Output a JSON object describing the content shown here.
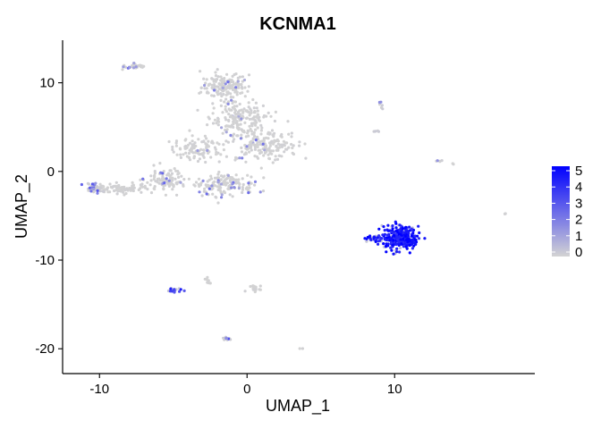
{
  "chart_data": {
    "type": "scatter",
    "title": "KCNMA1",
    "xlabel": "UMAP_1",
    "ylabel": "UMAP_2",
    "xlim": [
      -12.5,
      19.5
    ],
    "ylim": [
      -22.8,
      14.8
    ],
    "x_ticks": [
      -10,
      0,
      10
    ],
    "y_ticks": [
      10,
      0,
      -10,
      -20
    ],
    "grid": false,
    "legend_position": "right",
    "color_scale": {
      "min": 0,
      "max": 5,
      "low_color": "#d3d3d3",
      "high_color": "#0000ff",
      "ticks": [
        0,
        1,
        2,
        3,
        4,
        5
      ]
    },
    "clusters": [
      {
        "center": [
          -1.5,
          9.5
        ],
        "spread": [
          1.6,
          1.6
        ],
        "n": 160,
        "expr_mean": 0.3,
        "expr_high_frac": 0.06
      },
      {
        "center": [
          -0.5,
          6.0
        ],
        "spread": [
          2.0,
          1.8
        ],
        "n": 170,
        "expr_mean": 0.3,
        "expr_high_frac": 0.05
      },
      {
        "center": [
          1.0,
          3.0
        ],
        "spread": [
          2.5,
          1.8
        ],
        "n": 180,
        "expr_mean": 0.3,
        "expr_high_frac": 0.05
      },
      {
        "center": [
          -3.5,
          2.5
        ],
        "spread": [
          1.6,
          1.3
        ],
        "n": 100,
        "expr_mean": 0.3,
        "expr_high_frac": 0.05
      },
      {
        "center": [
          -1.5,
          -1.5
        ],
        "spread": [
          2.0,
          1.3
        ],
        "n": 150,
        "expr_mean": 0.3,
        "expr_high_frac": 0.08
      },
      {
        "center": [
          -5.5,
          -1.0
        ],
        "spread": [
          1.4,
          1.4
        ],
        "n": 90,
        "expr_mean": 0.3,
        "expr_high_frac": 0.05
      },
      {
        "center": [
          -8.5,
          -2.0
        ],
        "spread": [
          1.7,
          0.5
        ],
        "n": 80,
        "expr_mean": 0.3,
        "expr_high_frac": 0.04
      },
      {
        "center": [
          -10.3,
          -1.8
        ],
        "spread": [
          0.6,
          0.5
        ],
        "n": 50,
        "expr_mean": 0.8,
        "expr_high_frac": 0.25
      },
      {
        "center": [
          -7.8,
          11.8
        ],
        "spread": [
          0.5,
          0.4
        ],
        "n": 25,
        "expr_mean": 0.3,
        "expr_high_frac": 0.1
      },
      {
        "center": [
          -7.2,
          11.9
        ],
        "spread": [
          0.3,
          0.2
        ],
        "n": 8,
        "expr_mean": 0.2,
        "expr_high_frac": 0.0
      },
      {
        "center": [
          10.4,
          -7.5
        ],
        "spread": [
          1.2,
          1.3
        ],
        "n": 340,
        "expr_mean": 3.2,
        "expr_high_frac": 0.85
      },
      {
        "center": [
          8.6,
          -7.6
        ],
        "spread": [
          0.5,
          0.35
        ],
        "n": 30,
        "expr_mean": 2.8,
        "expr_high_frac": 0.8
      },
      {
        "center": [
          -5.0,
          -13.4
        ],
        "spread": [
          0.6,
          0.2
        ],
        "n": 18,
        "expr_mean": 2.0,
        "expr_high_frac": 0.5
      },
      {
        "center": [
          0.5,
          -13.2
        ],
        "spread": [
          0.6,
          0.3
        ],
        "n": 16,
        "expr_mean": 0.3,
        "expr_high_frac": 0.0
      },
      {
        "center": [
          -2.6,
          -12.3
        ],
        "spread": [
          0.3,
          0.3
        ],
        "n": 8,
        "expr_mean": 0.2,
        "expr_high_frac": 0.0
      },
      {
        "center": [
          -1.4,
          -18.9
        ],
        "spread": [
          0.3,
          0.15
        ],
        "n": 10,
        "expr_mean": 1.0,
        "expr_high_frac": 0.3
      },
      {
        "center": [
          9.1,
          7.5
        ],
        "spread": [
          0.3,
          0.6
        ],
        "n": 6,
        "expr_mean": 0.8,
        "expr_high_frac": 0.3
      },
      {
        "center": [
          8.8,
          4.5
        ],
        "spread": [
          0.2,
          0.2
        ],
        "n": 5,
        "expr_mean": 1.0,
        "expr_high_frac": 0.3
      },
      {
        "center": [
          13.0,
          1.2
        ],
        "spread": [
          0.3,
          0.15
        ],
        "n": 5,
        "expr_mean": 1.0,
        "expr_high_frac": 0.3
      },
      {
        "center": [
          14.0,
          0.9
        ],
        "spread": [
          0.1,
          0.1
        ],
        "n": 2,
        "expr_mean": 0.2,
        "expr_high_frac": 0.0
      },
      {
        "center": [
          17.5,
          -4.8
        ],
        "spread": [
          0.1,
          0.1
        ],
        "n": 2,
        "expr_mean": 0.2,
        "expr_high_frac": 0.0
      },
      {
        "center": [
          3.7,
          -20.0
        ],
        "spread": [
          0.1,
          0.1
        ],
        "n": 2,
        "expr_mean": 0.2,
        "expr_high_frac": 0.0
      }
    ]
  }
}
